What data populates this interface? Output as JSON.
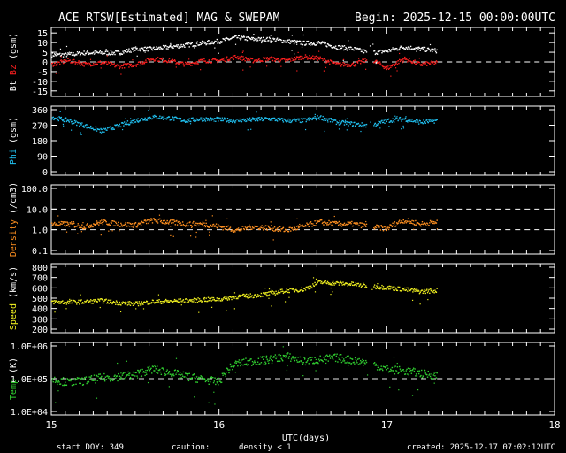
{
  "header": {
    "title": "ACE RTSW[Estimated] MAG & SWEPAM",
    "begin": "Begin: 2025-12-15 00:00:00UTC"
  },
  "footer": {
    "start_doy": "start DOY: 349",
    "caution": "caution:",
    "density_note": "density < 1",
    "created": "created: 2025-12-17 07:02:12UTC"
  },
  "xaxis": {
    "label": "UTC(days)",
    "ticks": [
      "15",
      "16",
      "17",
      "18"
    ]
  },
  "colors": {
    "bt": "#ffffff",
    "bz": "#ff2020",
    "phi": "#20c0f0",
    "density": "#ff9020",
    "speed": "#f0f020",
    "temp": "#30d030",
    "caution": "#ff9020",
    "axis": "#ffffff"
  },
  "panels": [
    {
      "key": "mag",
      "ylabel_parts": [
        {
          "text": "Bt",
          "color": "#ffffff"
        },
        {
          "text": " ",
          "color": "#ffffff"
        },
        {
          "text": "Bz",
          "color": "#ff2020"
        },
        {
          "text": "  (gsm)",
          "color": "#ffffff"
        }
      ],
      "ticks": [
        "15",
        "10",
        "5",
        "0",
        "-5",
        "-10",
        "-15"
      ]
    },
    {
      "key": "phi",
      "ylabel_parts": [
        {
          "text": "Phi",
          "color": "#20c0f0"
        },
        {
          "text": "  (gsm)",
          "color": "#ffffff"
        }
      ],
      "ticks": [
        "360",
        "270",
        "180",
        "90",
        "0"
      ]
    },
    {
      "key": "density",
      "ylabel_parts": [
        {
          "text": "Density",
          "color": "#ff9020"
        },
        {
          "text": "  (/cm3)",
          "color": "#ffffff"
        }
      ],
      "ticks": [
        "100.0",
        "10.0",
        "1.0",
        "0.1"
      ]
    },
    {
      "key": "speed",
      "ylabel_parts": [
        {
          "text": "Speed",
          "color": "#f0f020"
        },
        {
          "text": "  (km/s)",
          "color": "#ffffff"
        }
      ],
      "ticks": [
        "800",
        "700",
        "600",
        "500",
        "400",
        "300",
        "200"
      ]
    },
    {
      "key": "temp",
      "ylabel_parts": [
        {
          "text": "Temp",
          "color": "#30d030"
        },
        {
          "text": "  (K)",
          "color": "#ffffff"
        }
      ],
      "ticks": [
        "1.0E+06",
        "1.0E+05",
        "1.0E+04"
      ]
    }
  ],
  "chart_data": [
    {
      "type": "scatter",
      "name": "mag",
      "x": [
        15.0,
        15.1,
        15.2,
        15.3,
        15.4,
        15.5,
        15.6,
        15.7,
        15.8,
        15.9,
        16.0,
        16.1,
        16.2,
        16.3,
        16.4,
        16.5,
        16.6,
        16.7,
        16.8,
        16.9,
        17.0,
        17.1,
        17.2,
        17.3
      ],
      "series": [
        {
          "name": "Bt",
          "values": [
            4,
            4,
            5,
            5,
            5,
            7,
            7,
            8,
            9,
            10,
            11,
            13,
            12,
            12,
            11,
            10,
            10,
            8,
            7,
            5,
            6,
            8,
            7,
            6
          ]
        },
        {
          "name": "Bz",
          "values": [
            -1,
            1,
            -1,
            0,
            -2,
            -1,
            2,
            1,
            -1,
            1,
            1,
            3,
            1,
            2,
            1,
            3,
            2,
            -1,
            -1,
            2,
            -3,
            2,
            -1,
            0
          ]
        }
      ],
      "ylim": [
        -16,
        16
      ],
      "reference_lines": [
        0
      ]
    },
    {
      "type": "scatter",
      "name": "phi",
      "x": [
        15.0,
        15.1,
        15.2,
        15.3,
        15.4,
        15.5,
        15.6,
        15.7,
        15.8,
        15.9,
        16.0,
        16.1,
        16.2,
        16.3,
        16.4,
        16.5,
        16.6,
        16.7,
        16.8,
        16.9,
        17.0,
        17.1,
        17.2,
        17.3
      ],
      "values": [
        320,
        300,
        270,
        240,
        270,
        300,
        320,
        315,
        300,
        310,
        305,
        300,
        305,
        310,
        300,
        300,
        320,
        290,
        280,
        270,
        300,
        310,
        290,
        300
      ],
      "ylim": [
        0,
        360
      ]
    },
    {
      "type": "scatter",
      "name": "density",
      "x": [
        15.0,
        15.1,
        15.2,
        15.3,
        15.4,
        15.5,
        15.6,
        15.7,
        15.8,
        15.9,
        16.0,
        16.1,
        16.2,
        16.3,
        16.4,
        16.5,
        16.6,
        16.7,
        16.8,
        16.9,
        17.0,
        17.1,
        17.2,
        17.3
      ],
      "values": [
        2.0,
        2.0,
        1.5,
        2.5,
        2.0,
        1.8,
        3.0,
        2.5,
        2.0,
        2.0,
        1.5,
        1.0,
        1.5,
        1.3,
        1.0,
        1.5,
        2.5,
        2.0,
        2.0,
        1.5,
        1.2,
        3.0,
        2.0,
        2.5
      ],
      "ylim": [
        0.1,
        100
      ],
      "scale": "log",
      "reference_lines": [
        10,
        1
      ]
    },
    {
      "type": "scatter",
      "name": "speed",
      "x": [
        15.0,
        15.1,
        15.2,
        15.3,
        15.4,
        15.5,
        15.6,
        15.7,
        15.8,
        15.9,
        16.0,
        16.1,
        16.2,
        16.3,
        16.4,
        16.5,
        16.6,
        16.7,
        16.8,
        16.9,
        17.0,
        17.1,
        17.2,
        17.3
      ],
      "values": [
        470,
        465,
        470,
        480,
        460,
        450,
        470,
        475,
        480,
        490,
        495,
        520,
        530,
        550,
        580,
        590,
        660,
        650,
        640,
        620,
        610,
        590,
        570,
        580
      ],
      "ylim": [
        200,
        800
      ]
    },
    {
      "type": "scatter",
      "name": "temp",
      "x": [
        15.0,
        15.1,
        15.2,
        15.3,
        15.4,
        15.5,
        15.6,
        15.7,
        15.8,
        15.9,
        16.0,
        16.1,
        16.2,
        16.3,
        16.4,
        16.5,
        16.6,
        16.7,
        16.8,
        16.9,
        17.0,
        17.1,
        17.2,
        17.3
      ],
      "values": [
        100000,
        80000,
        90000,
        110000,
        120000,
        140000,
        200000,
        160000,
        120000,
        100000,
        80000,
        300000,
        350000,
        400000,
        500000,
        350000,
        400000,
        450000,
        380000,
        300000,
        200000,
        180000,
        150000,
        130000
      ],
      "ylim": [
        10000,
        1000000
      ],
      "scale": "log",
      "reference_lines": [
        100000
      ]
    }
  ]
}
